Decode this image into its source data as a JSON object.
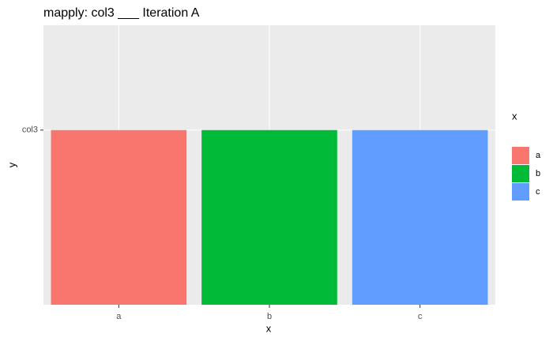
{
  "chart_data": {
    "type": "bar",
    "title": "mapply: col3 ___ Iteration A",
    "x_label": "x",
    "y_label": "y",
    "legend_title": "x",
    "categories": [
      "a",
      "b",
      "c"
    ],
    "values": [
      1,
      1,
      1
    ],
    "colors": [
      "#F8766D",
      "#00BA38",
      "#619CFF"
    ],
    "ylim": [
      0,
      1.6
    ],
    "yticks": [
      {
        "value": 1,
        "label": "col3"
      }
    ],
    "grid": true,
    "legend": "right"
  }
}
